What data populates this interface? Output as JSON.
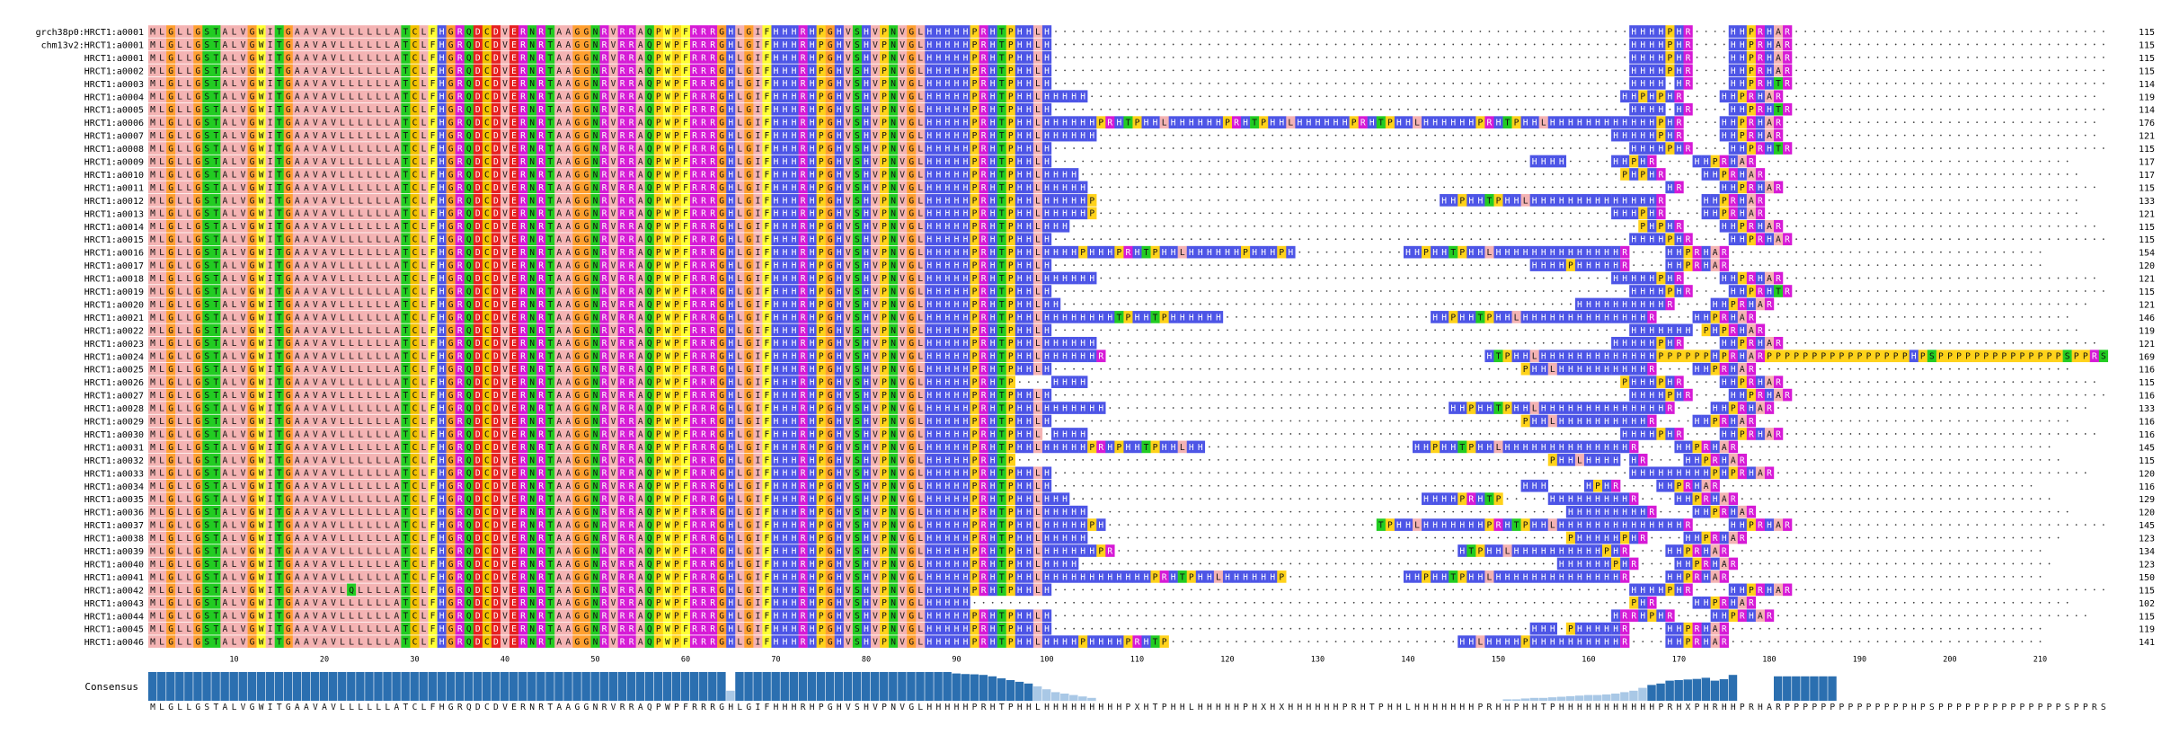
{
  "alignment": {
    "sequences": [
      {
        "name": "grch38p0:HRCT1:a0001",
        "seq": "MLGLLGSTALVGWITGAAVAVLLLLLLATCLFHGRQDCDVERNRTAAGGNRVRRAQPWPFRRRGHLGIFHHHRHPGHVSHVPNVGLHHHHHPRHTPHHLH----------------------------------------------------------------HHHHPHR----HHPRHAR-----------------------------------",
        "len": "115"
      },
      {
        "name": "chm13v2:HRCT1:a0001",
        "seq": "MLGLLGSTALVGWITGAAVAVLLLLLLATCLFHGRQDCDVERNRTAAGGNRVRRAQPWPFRRRGHLGIFHHHRHPGHVSHVPNVGLHHHHHPRHTPHHLH----------------------------------------------------------------HHHHPHR----HHPRHAR-----------------------------------",
        "len": "115"
      },
      {
        "name": "HRCT1:a0001",
        "seq": "MLGLLGSTALVGWITGAAVAVLLLLLLATCLFHGRQDCDVERNRTAAGGNRVRRAQPWPFRRRGHLGIFHHHRHPGHVSHVPNVGLHHHHHPRHTPHHLH----------------------------------------------------------------HHHHPHR----HHPRHAR-----------------------------------",
        "len": "115"
      },
      {
        "name": "HRCT1:a0002",
        "seq": "MLGLLGSTALVGWITGAAVAVLLLLLLATCLFHGRQDCDVERNRTAAGGNRVRRAQPWPFRRRGHLGIFHHHRHPGHVSHVPNVGLHHHHHPRHTPHHLH----------------------------------------------------------------HHHHPHR----HHPRHAR-----------------------------------",
        "len": "115"
      },
      {
        "name": "HRCT1:a0003",
        "seq": "MLGLLGSTALVGWITGAAVAVLLLLLLATCLFHGRQDCDVERNRTAAGGNRVRRAQPWPFRRRGHLGIFHHHRHPGHVSHVPNVGLHHHHHPRHTPHHLH----------------------------------------------------------------HHHH-HR----HHPRHTR-----------------------------------",
        "len": "114"
      },
      {
        "name": "HRCT1:a0004",
        "seq": "MLGLLGSTALVGWITGAAVAVLLLLLLATCLFHGRQDCDVERNRTAAGGNRVRRAQPWPFRRRGHLGIFHHHRHPGHVSHVPNVGLHHHHHPRHTPHHLHHHHH-----------------------------------------------------------HHPHPHR----HHPRHAR-----------------------------------",
        "len": "119"
      },
      {
        "name": "HRCT1:a0005",
        "seq": "MLGLLGSTALVGWITGAAVAVLLLLLLATCLFHGRQDCDVERNRTAAGGNRVRRAQPWPFRRRGHLGIFHHHRHPGHVSHVPNVGLHHHHHPRHTPHHLH----------------------------------------------------------------HHHH-HR----HHPRHTR-----------------------------------",
        "len": "114"
      },
      {
        "name": "HRCT1:a0006",
        "seq": "MLGLLGSTALVGWITGAAVAVLLLLLLATCLFHGRQDCDVERNRTAAGGNRVRRAQPWPFRRRGHLGIFHHHRHPGHVSHVPNVGLHHHHHPRHTPHHLHHHHHHPRHTPHHLHHHHHHPRHTPHHLHHHHHHPRHTPHHLHHHHHHPRHTPHHLHHHHHHHHHHHHPHR----HHPRHAR-----------------------------------",
        "len": "176"
      },
      {
        "name": "HRCT1:a0007",
        "seq": "MLGLLGSTALVGWITGAAVAVLLLLLLATCLFHGRQDCDVERNRTAAGGNRVRRAQPWPFRRRGHLGIFHHHRHPGHVSHVPNVGLHHHHHPRHTPHHLHHHHHH---------------------------------------------------------HHHHHPHR----HHPRHAR-----------------------------------",
        "len": "121"
      },
      {
        "name": "HRCT1:a0008",
        "seq": "MLGLLGSTALVGWITGAAVAVLLLLLLATCLFHGRQDCDVERNRTAAGGNRVRRAQPWPFRRRGHLGIFHHHRHPGHVSHVPNVGLHHHHHPRHTPHHLH----------------------------------------------------------------HHHHPHR----HHPRHTR-----------------------------------",
        "len": "115"
      },
      {
        "name": "HRCT1:a0009",
        "seq": "MLGLLGSTALVGWITGAAVAVLLLLLLATCLFHGRQDCDVERNRTAAGGNRVRRAQPWPFRRRGHLGIFHHHRHPGHVSHVPNVGLHHHHHPRHTPHHLH-----------------------------------------------------HHHH-----HHPHR----HHPRHAR-----------------------------------",
        "len": "117"
      },
      {
        "name": "HRCT1:a0010",
        "seq": "MLGLLGSTALVGWITGAAVAVLLLLLLATCLFHGRQDCDVERNRTAAGGNRVRRAQPWPFRRRGHLGIFHHHRHPGHVSHVPNVGLHHHHHPRHTPHHLHHHH------------------------------------------------------------PHPHR----HHPRHAR-----------------------------------",
        "len": "117"
      },
      {
        "name": "HRCT1:a0011",
        "seq": "MLGLLGSTALVGWITGAAVAVLLLLLLATCLFHGRQDCDVERNRTAAGGNRVRRAQPWPFRRRGHLGIFHHHRHPGHVSHVPNVGLHHHHHPRHTPHHLHHHHH----------------------------------------------------------------HR----HHPRHAR-----------------------------------",
        "len": "115"
      },
      {
        "name": "HRCT1:a0012",
        "seq": "MLGLLGSTALVGWITGAAVAVLLLLLLATCLFHGRQDCDVERNRTAAGGNRVRRAQPWPFRRRGHLGIFHHHRHPGHVSHVPNVGLHHHHHPRHTPHHLHHHHHP--------------------------------------HHPHHTPHHLHHHHHHHHHHHHHHR----HHPRHAR-----------------------------------",
        "len": "133"
      },
      {
        "name": "HRCT1:a0013",
        "seq": "MLGLLGSTALVGWITGAAVAVLLLLLLATCLFHGRQDCDVERNRTAAGGNRVRRAQPWPFRRRGHLGIFHHHRHPGHVSHVPNVGLHHHHHPRHTPHHLHHHHHP---------------------------------------------------------HHHPHR----HHPRHAR-----------------------------------",
        "len": "121"
      },
      {
        "name": "HRCT1:a0014",
        "seq": "MLGLLGSTALVGWITGAAVAVLLLLLLATCLFHGRQDCDVERNRTAAGGNRVRRAQPWPFRRRGHLGIFHHHRHPGHVSHVPNVGLHHHHHPRHTPHHLHHH---------------------------------------------------------------PHPHR----HHPRHAR-----------------------------------",
        "len": "115"
      },
      {
        "name": "HRCT1:a0015",
        "seq": "MLGLLGSTALVGWITGAAVAVLLLLLLATCLFHGRQDCDVERNRTAAGGNRVRRAQPWPFRRRGHLGIFHHHRHPGHVSHVPNVGLHHHHHPRHTPHHLH----------------------------------------------------------------HHHHPHR----HHPRHAR-----------------------------------",
        "len": "115"
      },
      {
        "name": "HRCT1:a0016",
        "seq": "MLGLLGSTALVGWITGAAVAVLLLLLLATCLFHGRQDCDVERNRTAAGGNRVRRAQPWPFRRRGHLGIFHHHRHPGHVSHVPNVGLHHHHHPRHTPHHLHHHHPHHHPRHTPHHLHHHHHHPHHHPH------------HHPHHTPHHLHHHHHHHHHHHHHHR----HHPRHAR-----------------------------------",
        "len": "154"
      },
      {
        "name": "HRCT1:a0017",
        "seq": "MLGLLGSTALVGWITGAAVAVLLLLLLATCLFHGRQDCDVERNRTAAGGNRVRRAQPWPFRRRGHLGIFHHHRHPGHVSHVPNVGLHHHHHPRHTPHHLH-----------------------------------------------------HHHHPHHHHHR----HHPRHAR-----------------------------------",
        "len": "120"
      },
      {
        "name": "HRCT1:a0018",
        "seq": "MLGLLGSTALVGWITGAAVAVLLLLLLATCLFHGRQDCDVERNRTAAGGNRVRRAQPWPFRRRGHLGIFHHHRHPGHVSHVPNVGLHHHHHPRHTPHHLHHHHHH---------------------------------------------------------HHHHHPHR----HHPRHAR-----------------------------------",
        "len": "121"
      },
      {
        "name": "HRCT1:a0019",
        "seq": "MLGLLGSTALVGWITGAAVAVLLLLLLATCLFHGRQDCDVERNRTAAGGNRVRRAQPWPFRRRGHLGIFHHHRHPGHVSHVPNVGLHHHHHPRHTPHHLH----------------------------------------------------------------HHHHPHR----HHPRHTR-----------------------------------",
        "len": "115"
      },
      {
        "name": "HRCT1:a0020",
        "seq": "MLGLLGSTALVGWITGAAVAVLLLLLLATCLFHGRQDCDVERNRTAAGGNRVRRAQPWPFRRRGHLGIFHHHRHPGHVSHVPNVGLHHHHHPRHTPHHLHH---------------------------------------------------------HHHHHHHHHHR----HHPRHAR-----------------------------------",
        "len": "121"
      },
      {
        "name": "HRCT1:a0021",
        "seq": "MLGLLGSTALVGWITGAAVAVLLLLLLATCLFHGRQDCDVERNRTAAGGNRVRRAQPWPFRRRGHLGIFHHHRHPGHVSHVPNVGLHHHHHPRHTPHHLHHHHHHHHTPHHTPHHHHHH-----------------------HHPHHTPHHLHHHHHHHHHHHHHHR----HHPRHAR-----------------------------------",
        "len": "146"
      },
      {
        "name": "HRCT1:a0022",
        "seq": "MLGLLGSTALVGWITGAAVAVLLLLLLATCLFHGRQDCDVERNRTAAGGNRVRRAQPWPFRRRGHLGIFHHHRHPGHVSHVPNVGLHHHHHPRHTPHHLH----------------------------------------------------------------HHHHHHH-PHPRHAR-----------------------------------",
        "len": "119"
      },
      {
        "name": "HRCT1:a0023",
        "seq": "MLGLLGSTALVGWITGAAVAVLLLLLLATCLFHGRQDCDVERNRTAAGGNRVRRAQPWPFRRRGHLGIFHHHRHPGHVSHVPNVGLHHHHHPRHTPHHLHHHHHH---------------------------------------------------------HHHHHPHR----HHPRHAR-----------------------------------",
        "len": "121"
      },
      {
        "name": "HRCT1:a0024",
        "seq": "MLGLLGSTALVGWITGAAVAVLLLLLLATCLFHGRQDCDVERNRTAAGGNRVRRAQPWPFRRRGHLGIFHHHRHPGHVSHVPNVGLHHHHHPRHTPHHLHHHHHHR------------------------------------------HTPHHLHHHHHHHHHHHHHPPPPPPHPRHARPPPPPPPPPPPPPPPPHPSPPPPPPPPPPPPPPSPPRS",
        "len": "169"
      },
      {
        "name": "HRCT1:a0025",
        "seq": "MLGLLGSTALVGWITGAAVAVLLLLLLATCLFHGRQDCDVERNRTAAGGNRVRRAQPWPFRRRGHLGIFHHHRHPGHVSHVPNVGLHHHHHPRHTPHHLH----------------------------------------------------PHHLHHHHHHHHHHR----HHPRHAR-----------------------------------",
        "len": "116"
      },
      {
        "name": "HRCT1:a0026",
        "seq": "MLGLLGSTALVGWITGAAVAVLLLLLLATCLFHGRQDCDVERNRTAAGGNRVRRAQPWPFRRRGHLGIFHHHRHPGHVSHVPNVGLHHHHHPRHTP----HHHH-----------------------------------------------------------PHHHPHR----HHPRHAR-----------------------------------",
        "len": "115"
      },
      {
        "name": "HRCT1:a0027",
        "seq": "MLGLLGSTALVGWITGAAVAVLLLLLLATCLFHGRQDCDVERNRTAAGGNRVRRAQPWPFRRRGHLGIFHHHRHPGHVSHVPNVGLHHHHHPRHTPHHLH----------------------------------------------------------------HHHHPHR----HHPRHAR-----------------------------------",
        "len": "116"
      },
      {
        "name": "HRCT1:a0028",
        "seq": "MLGLLGSTALVGWITGAAVAVLLLLLLATCLFHGRQDCDVERNRTAAGGNRVRRAQPWPFRRRGHLGIFHHHRHPGHVSHVPNVGLHHHHHPRHTPHHLHHHHHHH--------------------------------------HHPHHTPHHLHHHHHHHHHHHHHHR----HHPRHAR-----------------------------------",
        "len": "133"
      },
      {
        "name": "HRCT1:a0029",
        "seq": "MLGLLGSTALVGWITGAAVAVLLLLLLATCLFHGRQDCDVERNRTAAGGNRVRRAQPWPFRRRGHLGIFHHHRHPGHVSHVPNVGLHHHHHPRHTPHHLH----------------------------------------------------PHHLHHHHHHHHHHR----HHPRHAR-----------------------------------",
        "len": "116"
      },
      {
        "name": "HRCT1:a0030",
        "seq": "MLGLLGSTALVGWITGAAVAVLLLLLLATCLFHGRQDCDVERNRTAAGGNRVRRAQPWPFRRRGHLGIFHHHRHPGHVSHVPNVGLHHHHHPRHTPHHL-HHHH-----------------------------------------------------------HHHHPHR----HHPRHAR-----------------------------------",
        "len": "116"
      },
      {
        "name": "HRCT1:a0031",
        "seq": "MLGLLGSTALVGWITGAAVAVLLLLLLATCLFHGRQDCDVERNRTAAGGNRVRRAQPWPFRRRGHLGIFHHHRHPGHVSHVPNVGLHHHHHPRHTPHHLHHHHHPRHPHHTPHHLHH-----------------------HHPHHTPHHLHHHHHHHHHHHHHHR----HHPRHAR-----------------------------------",
        "len": "145"
      },
      {
        "name": "HRCT1:a0032",
        "seq": "MLGLLGSTALVGWITGAAVAVLLLLLLATCLFHGRQDCDVERNRTAAGGNRVRRAQPWPFRRRGHLGIFHHHRHPGHVSHVPNVGLHHHHHPRHTP-----------------------------------------------------------PHHLHHHH-HR----HHPRHAR-----------------------------------",
        "len": "115"
      },
      {
        "name": "HRCT1:a0033",
        "seq": "MLGLLGSTALVGWITGAAVAVLLLLLLATCLFHGRQDCDVERNRTAAGGNRVRRAQPWPFRRRGHLGIFHHHRHPGHVSHVPNVGLHHHHHPRHTPHHLH----------------------------------------------------------------HHHHHHHHHPHPRHAR-----------------------------------",
        "len": "120"
      },
      {
        "name": "HRCT1:a0034",
        "seq": "MLGLLGSTALVGWITGAAVAVLLLLLLATCLFHGRQDCDVERNRTAAGGNRVRRAQPWPFRRRGHLGIFHHHRHPGHVSHVPNVGLHHHHHPRHTPHHLH----------------------------------------------------HHH----HPHR----HHPRHAR-----------------------------------",
        "len": "116"
      },
      {
        "name": "HRCT1:a0035",
        "seq": "MLGLLGSTALVGWITGAAVAVLLLLLLATCLFHGRQDCDVERNRTAAGGNRVRRAQPWPFRRRGHLGIFHHHRHPGHVSHVPNVGLHHHHHPRHTPHHLHHH---------------------------------------HHHHPRHTP-----HHHHHHHHHR----HHPRHAR-----------------------------------",
        "len": "129"
      },
      {
        "name": "HRCT1:a0036",
        "seq": "MLGLLGSTALVGWITGAAVAVLLLLLLATCLFHGRQDCDVERNRTAAGGNRVRRAQPWPFRRRGHLGIFHHHRHPGHVSHVPNVGLHHHHHPRHTPHHLHHHHH-----------------------------------------------------HHHHHHHHHR----HHPRHAR-----------------------------------",
        "len": "120"
      },
      {
        "name": "HRCT1:a0037",
        "seq": "MLGLLGSTALVGWITGAAVAVLLLLLLATCLFHGRQDCDVERNRTAAGGNRVRRAQPWPFRRRGHLGIFHHHRHPGHVSHVPNVGLHHHHHPRHTPHHLHHHHHPH------------------------------TPHHLHHHHHHHPRHTPHHLHHHHHHHHHHHHHHR----HHPRHAR-----------------------------------",
        "len": "145"
      },
      {
        "name": "HRCT1:a0038",
        "seq": "MLGLLGSTALVGWITGAAVAVLLLLLLATCLFHGRQDCDVERNRTAAGGNRVRRAQPWPFRRRGHLGIFHHHRHPGHVSHVPNVGLHHHHHPRHTPHHLHHHHH-----------------------------------------------------PHHHHHPHR----HHPRHAR-----------------------------------",
        "len": "123"
      },
      {
        "name": "HRCT1:a0039",
        "seq": "MLGLLGSTALVGWITGAAVAVLLLLLLATCLFHGRQDCDVERNRTAAGGNRVRRAQPWPFRRRGHLGIFHHHRHPGHVSHVPNVGLHHHHHPRHTPHHLHHHHHHPR--------------------------------------HTPHHLHHHHHHHHHHPHR----HHPRHAR-----------------------------------",
        "len": "134"
      },
      {
        "name": "HRCT1:a0040",
        "seq": "MLGLLGSTALVGWITGAAVAVLLLLLLATCLFHGRQDCDVERNRTAAGGNRVRRAQPWPFRRRGHLGIFHHHRHPGHVSHVPNVGLHHHHHPRHTPHHLHHHH-----------------------------------------------------HHHHHHPHR----HHPRHAR-----------------------------------",
        "len": "123"
      },
      {
        "name": "HRCT1:a0041",
        "seq": "MLGLLGSTALVGWITGAAVAVLLLLLLATCLFHGRQDCDVERNRTAAGGNRVRRAQPWPFRRRGHLGIFHHHRHPGHVSHVPNVGLHHHHHPRHTPHHLHHHHHHHHHHHHPRHTPHHLHHHHHHP-------------HHPHHTPHHLHHHHHHHHHHHHHHR----HHPRHAR-----------------------------------",
        "len": "150"
      },
      {
        "name": "HRCT1:a0042",
        "seq": "MLGLLGSTALVGWITGAAVAVLQLLLLATCLFHGRQDCDVERNRTAAGGNRVRRAQPWPFRRRGHLGIFHHHRHPGHVSHVPNVGLHHHHHPRHTPHHLH----------------------------------------------------------------HHHHPHR----HHPRHAR-----------------------------------",
        "len": "115"
      },
      {
        "name": "HRCT1:a0043",
        "seq": "MLGLLGSTALVGWITGAAVAVLLLLLLATCLFHGRQDCDVERNRTAAGGNRVRRAQPWPFRRRGHLGIFHHHRHPGHVSHVPNVGLHHHHH-------------------------------------------------------------------------PHR----HHPRHAR-----------------------------------",
        "len": "102"
      },
      {
        "name": "HRCT1:a0044",
        "seq": "MLGLLGSTALVGWITGAAVAVLLLLLLATCLFHGRQDCDVERNRTAAGGNRVRRAQPWPFRRRGHLGIFHHHRHPGHVSHVPNVGLHHHHHPRHTPHHLH--------------------------------------------------------------HRRHPHR----HHPRHAR-----------------------------------",
        "len": "115"
      },
      {
        "name": "HRCT1:a0045",
        "seq": "MLGLLGSTALVGWITGAAVAVLLLLLLATCLFHGRQDCDVERNRTAAGGNRVRRAQPWPFRRRGHLGIFHHHRHPGHVSHVPNVGLHHHHHPRHTPHHLH-----------------------------------------------------HHH-PHHHHHR----HHPRHAR-----------------------------------",
        "len": "119"
      },
      {
        "name": "HRCT1:a0046",
        "seq": "MLGLLGSTALVGWITGAAVAVLLLLLLATCLFHGRQDCDVERNRTAAGGNRVRRAQPWPFRRRGHLGIFHHHRHPGHVSHVPNVGLHHHHHPRHTPHHLHHHHPHHHHPRHTP--------------------------------HHLHHHHPHHHHHHHHHHR----HHPRHAR-----------------------------------",
        "len": "141"
      }
    ],
    "ruler": [
      "10",
      "20",
      "30",
      "40",
      "50",
      "60",
      "70",
      "80",
      "90",
      "100",
      "110",
      "120",
      "130",
      "140",
      "150",
      "160",
      "170",
      "180",
      "190",
      "200",
      "210"
    ],
    "consensus_label": "Consensus",
    "consensus": "MLGLLGSTALVGWITGAAVAVLLLLLLATCLFHGRQDCDVERNRTAAGGNRVRRAQPWPFRRRGHLGIFHHHRHPGHVSHVPNVGLHHHHHPRHTPHHLHHHHHHHHHPXHTPHHLHHHHHPHXHXHHHHHHPRHTPHHLHHHHHHHPRHHPHHTPHHHHHHHHHHHPRHXPHRHHPRHARPPPPPPPPPPPPPPHPSPPPPPPPPPPPPPPSPPRS",
    "conservation": [
      1,
      1,
      1,
      1,
      1,
      1,
      1,
      1,
      1,
      1,
      1,
      1,
      1,
      1,
      1,
      1,
      1,
      1,
      1,
      1,
      1,
      1,
      1,
      1,
      1,
      1,
      1,
      1,
      1,
      1,
      1,
      1,
      1,
      1,
      1,
      1,
      1,
      1,
      1,
      1,
      1,
      1,
      1,
      1,
      1,
      1,
      1,
      1,
      1,
      1,
      1,
      1,
      1,
      1,
      1,
      1,
      1,
      1,
      1,
      1,
      1,
      1,
      1,
      1,
      0.35,
      1,
      1,
      1,
      1,
      1,
      1,
      1,
      1,
      1,
      1,
      1,
      1,
      1,
      1,
      1,
      1,
      1,
      1,
      1,
      1,
      1,
      1,
      1,
      1,
      0.95,
      0.93,
      0.92,
      0.9,
      0.85,
      0.78,
      0.72,
      0.66,
      0.6,
      0.5,
      0.4,
      0.3,
      0.25,
      0.2,
      0.15,
      0.1,
      0,
      0,
      0,
      0,
      0,
      0,
      0,
      0,
      0,
      0,
      0,
      0,
      0,
      0,
      0,
      0,
      0,
      0,
      0,
      0,
      0,
      0,
      0,
      0,
      0,
      0,
      0,
      0,
      0,
      0,
      0,
      0,
      0,
      0,
      0,
      0,
      0,
      0,
      0,
      0,
      0,
      0,
      0,
      0,
      0,
      0.05,
      0.05,
      0.08,
      0.1,
      0.1,
      0.12,
      0.14,
      0.16,
      0.18,
      0.2,
      0.2,
      0.22,
      0.25,
      0.3,
      0.35,
      0.45,
      0.55,
      0.6,
      0.7,
      0.72,
      0.74,
      0.76,
      0.8,
      0.7,
      0.75,
      0.9,
      0,
      0,
      0,
      0,
      0.85,
      0.85,
      0.85,
      0.85,
      0.85,
      0.85,
      0.85,
      0,
      0,
      0,
      0,
      0,
      0,
      0,
      0,
      0,
      0,
      0,
      0,
      0,
      0,
      0,
      0,
      0,
      0,
      0,
      0,
      0,
      0,
      0,
      0,
      0,
      0,
      0,
      0,
      0,
      0,
      0,
      0,
      0,
      0,
      0,
      0,
      0,
      0,
      0,
      0,
      0,
      0
    ],
    "colors": {
      "hydrophobic": "#f4b3b3",
      "glycine": "#ff9f2f",
      "polar_green": "#22cc22",
      "aromatic": "#ffff33",
      "basic_histidine": "#4d55e6",
      "basic_arg": "#d61ad6",
      "acidic": "#e62020",
      "proline": "#ffd21a",
      "cysteine": "#f2c200",
      "bar": "#2b6fb0",
      "bar_light": "#a9c8e6"
    }
  }
}
